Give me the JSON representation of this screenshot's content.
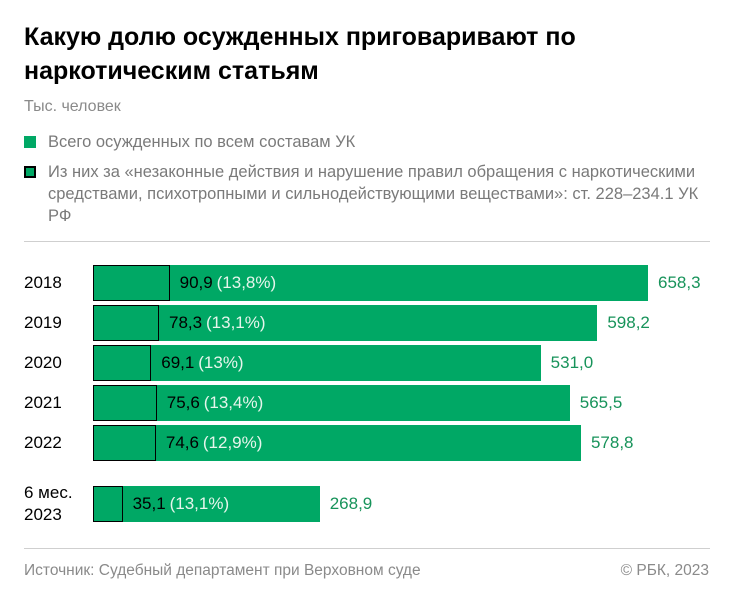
{
  "chart_data": {
    "type": "bar",
    "orientation": "horizontal",
    "title": "Какую долю осужденных приговаривают по наркотическим статьям",
    "subtitle": "Тыс. человек",
    "categories": [
      "2018",
      "2019",
      "2020",
      "2021",
      "2022",
      "6 мес. 2023"
    ],
    "xlim": [
      0,
      658.3
    ],
    "series": [
      {
        "name": "Всего осужденных по всем составам УК",
        "color": "#00a865",
        "values": [
          658.3,
          598.2,
          531.0,
          565.5,
          578.8,
          268.9
        ],
        "value_labels": [
          "658,3",
          "598,2",
          "531,0",
          "565,5",
          "578,8",
          "268,9"
        ]
      },
      {
        "name": "Из них за «незаконные действия и нарушение правил обращения с наркотическими средствами, психотропными и сильнодействующими веществами»: ст. 228–234.1 УК РФ",
        "color": "#00a865",
        "border": "#000000",
        "values": [
          90.9,
          78.3,
          69.1,
          75.6,
          74.6,
          35.1
        ],
        "value_labels": [
          "90,9",
          "78,3",
          "69,1",
          "75,6",
          "74,6",
          "35,1"
        ]
      }
    ],
    "shares": {
      "values": [
        13.8,
        13.1,
        13,
        13.4,
        12.9,
        13.1
      ],
      "value_labels": [
        "(13,8%)",
        "(13,1%)",
        "(13%)",
        "(13,4%)",
        "(12,9%)",
        "(13,1%)"
      ]
    },
    "source": "Источник: Судебный департамент при Верховном суде",
    "copyright": "© РБК, 2023"
  }
}
